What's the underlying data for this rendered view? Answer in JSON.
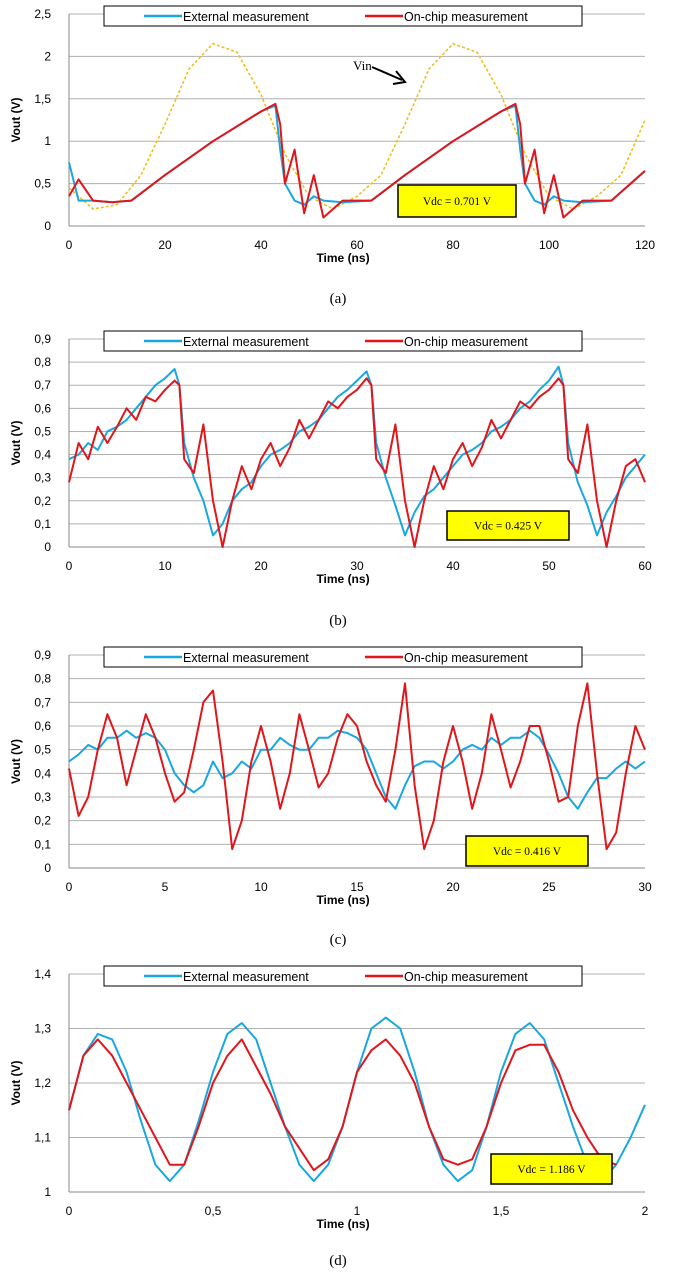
{
  "legend": {
    "external": "External measurement",
    "onchip": "On-chip measurement"
  },
  "colors": {
    "external": "#1aa7e0",
    "onchip": "#e0161b",
    "vin": "#f0c020",
    "vdc_box": "#ffff00",
    "grid": "#b0b0b0"
  },
  "chart_data": [
    {
      "type": "line",
      "caption": "(a)",
      "xlabel": "Time (ns)",
      "ylabel": "Vout (V)",
      "xlim": [
        0,
        120
      ],
      "ylim": [
        0,
        2.5
      ],
      "xticks": [
        "0",
        "20",
        "40",
        "60",
        "80",
        "100",
        "120"
      ],
      "yticks": [
        "0",
        "0,5",
        "1",
        "1,5",
        "2",
        "2,5"
      ],
      "grid": true,
      "legend_position": "top",
      "annotation_vdc": "Vdc = 0.701 V",
      "annotation_vin": "Vin",
      "x": [
        0,
        2,
        5,
        9,
        13,
        20,
        30,
        40,
        43,
        44,
        45,
        47,
        49,
        51,
        53,
        57,
        63,
        70,
        80,
        90,
        93,
        94,
        95,
        97,
        99,
        101,
        103,
        107,
        113,
        120
      ],
      "series": [
        {
          "name": "External measurement",
          "values": [
            0.75,
            0.3,
            0.3,
            0.28,
            0.3,
            0.6,
            1.0,
            1.35,
            1.42,
            0.9,
            0.5,
            0.3,
            0.25,
            0.35,
            0.3,
            0.28,
            0.3,
            0.6,
            1.0,
            1.35,
            1.42,
            0.9,
            0.5,
            0.3,
            0.25,
            0.35,
            0.3,
            0.28,
            0.3,
            0.65
          ]
        },
        {
          "name": "On-chip measurement",
          "values": [
            0.35,
            0.55,
            0.3,
            0.28,
            0.3,
            0.6,
            1.0,
            1.35,
            1.44,
            1.2,
            0.5,
            0.9,
            0.15,
            0.6,
            0.1,
            0.3,
            0.3,
            0.6,
            1.0,
            1.35,
            1.44,
            1.2,
            0.5,
            0.9,
            0.15,
            0.6,
            0.1,
            0.3,
            0.3,
            0.65
          ]
        }
      ],
      "vin_x": [
        0,
        5,
        10,
        15,
        20,
        25,
        30,
        35,
        40,
        45,
        50,
        55,
        60,
        65,
        70,
        75,
        80,
        85,
        90,
        95,
        100,
        105,
        110,
        115,
        120
      ],
      "vin_values": [
        0.45,
        0.2,
        0.25,
        0.6,
        1.2,
        1.85,
        2.15,
        2.05,
        1.55,
        0.85,
        0.35,
        0.2,
        0.35,
        0.6,
        1.2,
        1.85,
        2.15,
        2.05,
        1.55,
        0.85,
        0.35,
        0.2,
        0.35,
        0.6,
        1.25
      ]
    },
    {
      "type": "line",
      "caption": "(b)",
      "xlabel": "Time (ns)",
      "ylabel": "Vout (V)",
      "xlim": [
        0,
        60
      ],
      "ylim": [
        0,
        0.9
      ],
      "xticks": [
        "0",
        "10",
        "20",
        "30",
        "40",
        "50",
        "60"
      ],
      "yticks": [
        "0",
        "0,1",
        "0,2",
        "0,3",
        "0,4",
        "0,5",
        "0,6",
        "0,7",
        "0,8",
        "0,9"
      ],
      "grid": true,
      "legend_position": "top",
      "annotation_vdc": "Vdc = 0.425 V",
      "x": [
        0,
        1,
        2,
        3,
        4,
        5,
        6,
        7,
        8,
        9,
        10,
        11,
        11.5,
        12,
        13,
        14,
        15,
        16,
        17,
        18,
        19,
        20,
        21,
        22,
        23,
        24,
        25,
        26,
        27,
        28,
        29,
        30,
        31,
        31.5,
        32,
        33,
        34,
        35,
        36,
        37,
        38,
        39,
        40,
        41,
        42,
        43,
        44,
        45,
        46,
        47,
        48,
        49,
        50,
        51,
        51.5,
        52,
        53,
        54,
        55,
        56,
        57,
        58,
        59,
        60
      ],
      "series": [
        {
          "name": "External measurement",
          "values": [
            0.38,
            0.4,
            0.45,
            0.42,
            0.5,
            0.52,
            0.55,
            0.6,
            0.65,
            0.7,
            0.73,
            0.77,
            0.7,
            0.45,
            0.3,
            0.2,
            0.05,
            0.1,
            0.2,
            0.25,
            0.28,
            0.35,
            0.4,
            0.42,
            0.45,
            0.5,
            0.52,
            0.55,
            0.6,
            0.65,
            0.68,
            0.72,
            0.76,
            0.7,
            0.45,
            0.3,
            0.18,
            0.05,
            0.15,
            0.22,
            0.25,
            0.3,
            0.35,
            0.4,
            0.42,
            0.45,
            0.5,
            0.52,
            0.55,
            0.6,
            0.63,
            0.68,
            0.72,
            0.78,
            0.7,
            0.45,
            0.28,
            0.18,
            0.05,
            0.15,
            0.22,
            0.3,
            0.35,
            0.4
          ]
        },
        {
          "name": "On-chip measurement",
          "values": [
            0.28,
            0.45,
            0.38,
            0.52,
            0.45,
            0.52,
            0.6,
            0.55,
            0.65,
            0.63,
            0.68,
            0.72,
            0.7,
            0.38,
            0.32,
            0.53,
            0.2,
            0.0,
            0.2,
            0.35,
            0.25,
            0.38,
            0.45,
            0.35,
            0.43,
            0.55,
            0.47,
            0.55,
            0.63,
            0.6,
            0.65,
            0.68,
            0.73,
            0.7,
            0.38,
            0.32,
            0.53,
            0.2,
            0.0,
            0.2,
            0.35,
            0.25,
            0.38,
            0.45,
            0.35,
            0.43,
            0.55,
            0.47,
            0.55,
            0.63,
            0.6,
            0.65,
            0.68,
            0.73,
            0.7,
            0.38,
            0.32,
            0.53,
            0.2,
            0.0,
            0.2,
            0.35,
            0.38,
            0.28
          ]
        }
      ]
    },
    {
      "type": "line",
      "caption": "(c)",
      "xlabel": "Time (ns)",
      "ylabel": "Vout (V)",
      "xlim": [
        0,
        30
      ],
      "ylim": [
        0,
        0.9
      ],
      "xticks": [
        "0",
        "5",
        "10",
        "15",
        "20",
        "25",
        "30"
      ],
      "yticks": [
        "0",
        "0,1",
        "0,2",
        "0,3",
        "0,4",
        "0,5",
        "0,6",
        "0,7",
        "0,8",
        "0,9"
      ],
      "grid": true,
      "legend_position": "top",
      "annotation_vdc": "Vdc = 0.416 V",
      "x": [
        0,
        0.5,
        1,
        1.5,
        2,
        2.5,
        3,
        3.5,
        4,
        4.5,
        5,
        5.5,
        6,
        6.5,
        7,
        7.5,
        8,
        8.5,
        9,
        9.5,
        10,
        10.5,
        11,
        11.5,
        12,
        12.5,
        13,
        13.5,
        14,
        14.5,
        15,
        15.5,
        16,
        16.5,
        17,
        17.5,
        18,
        18.5,
        19,
        19.5,
        20,
        20.5,
        21,
        21.5,
        22,
        22.5,
        23,
        23.5,
        24,
        24.5,
        25,
        25.5,
        26,
        26.5,
        27,
        27.5,
        28,
        28.5,
        29,
        29.5,
        30
      ],
      "series": [
        {
          "name": "External measurement",
          "values": [
            0.45,
            0.48,
            0.52,
            0.5,
            0.55,
            0.55,
            0.58,
            0.55,
            0.57,
            0.55,
            0.5,
            0.4,
            0.35,
            0.32,
            0.35,
            0.45,
            0.38,
            0.4,
            0.45,
            0.42,
            0.5,
            0.5,
            0.55,
            0.52,
            0.5,
            0.5,
            0.55,
            0.55,
            0.58,
            0.57,
            0.55,
            0.5,
            0.4,
            0.3,
            0.25,
            0.35,
            0.43,
            0.45,
            0.45,
            0.42,
            0.45,
            0.5,
            0.52,
            0.5,
            0.55,
            0.52,
            0.55,
            0.55,
            0.58,
            0.55,
            0.48,
            0.4,
            0.3,
            0.25,
            0.32,
            0.38,
            0.38,
            0.42,
            0.45,
            0.42,
            0.45
          ]
        },
        {
          "name": "On-chip measurement",
          "values": [
            0.42,
            0.22,
            0.3,
            0.5,
            0.65,
            0.55,
            0.35,
            0.5,
            0.65,
            0.55,
            0.4,
            0.28,
            0.32,
            0.5,
            0.7,
            0.75,
            0.45,
            0.08,
            0.2,
            0.45,
            0.6,
            0.45,
            0.25,
            0.4,
            0.65,
            0.5,
            0.34,
            0.4,
            0.55,
            0.65,
            0.6,
            0.45,
            0.35,
            0.28,
            0.5,
            0.78,
            0.35,
            0.08,
            0.2,
            0.45,
            0.6,
            0.45,
            0.25,
            0.4,
            0.65,
            0.5,
            0.34,
            0.45,
            0.6,
            0.6,
            0.45,
            0.28,
            0.3,
            0.6,
            0.78,
            0.4,
            0.08,
            0.15,
            0.4,
            0.6,
            0.5
          ]
        }
      ]
    },
    {
      "type": "line",
      "caption": "(d)",
      "xlabel": "Time (ns)",
      "ylabel": "Vout (V)",
      "xlim": [
        0,
        2
      ],
      "ylim": [
        1,
        1.4
      ],
      "xticks": [
        "0",
        "0,5",
        "1",
        "1,5",
        "2"
      ],
      "yticks": [
        "1",
        "1,1",
        "1,2",
        "1,3",
        "1,4"
      ],
      "grid": true,
      "legend_position": "top",
      "annotation_vdc": "Vdc = 1.186 V",
      "x": [
        0,
        0.05,
        0.1,
        0.15,
        0.2,
        0.25,
        0.3,
        0.35,
        0.4,
        0.45,
        0.5,
        0.55,
        0.6,
        0.65,
        0.7,
        0.75,
        0.8,
        0.85,
        0.9,
        0.95,
        1.0,
        1.05,
        1.1,
        1.15,
        1.2,
        1.25,
        1.3,
        1.35,
        1.4,
        1.45,
        1.5,
        1.55,
        1.6,
        1.65,
        1.7,
        1.75,
        1.8,
        1.85,
        1.9,
        1.95,
        2.0
      ],
      "series": [
        {
          "name": "External measurement",
          "values": [
            1.15,
            1.25,
            1.29,
            1.28,
            1.22,
            1.13,
            1.05,
            1.02,
            1.05,
            1.13,
            1.22,
            1.29,
            1.31,
            1.28,
            1.2,
            1.12,
            1.05,
            1.02,
            1.05,
            1.12,
            1.22,
            1.3,
            1.32,
            1.3,
            1.22,
            1.12,
            1.05,
            1.02,
            1.04,
            1.12,
            1.22,
            1.29,
            1.31,
            1.28,
            1.2,
            1.12,
            1.05,
            1.02,
            1.05,
            1.1,
            1.16
          ]
        },
        {
          "name": "On-chip measurement",
          "values": [
            1.15,
            1.25,
            1.28,
            1.25,
            1.2,
            1.15,
            1.1,
            1.05,
            1.05,
            1.12,
            1.2,
            1.25,
            1.28,
            1.23,
            1.18,
            1.12,
            1.08,
            1.04,
            1.06,
            1.12,
            1.22,
            1.26,
            1.28,
            1.25,
            1.2,
            1.12,
            1.06,
            1.05,
            1.06,
            1.12,
            1.2,
            1.26,
            1.27,
            1.27,
            1.22,
            1.15,
            1.1,
            1.06,
            1.05,
            null,
            null
          ]
        }
      ]
    }
  ]
}
